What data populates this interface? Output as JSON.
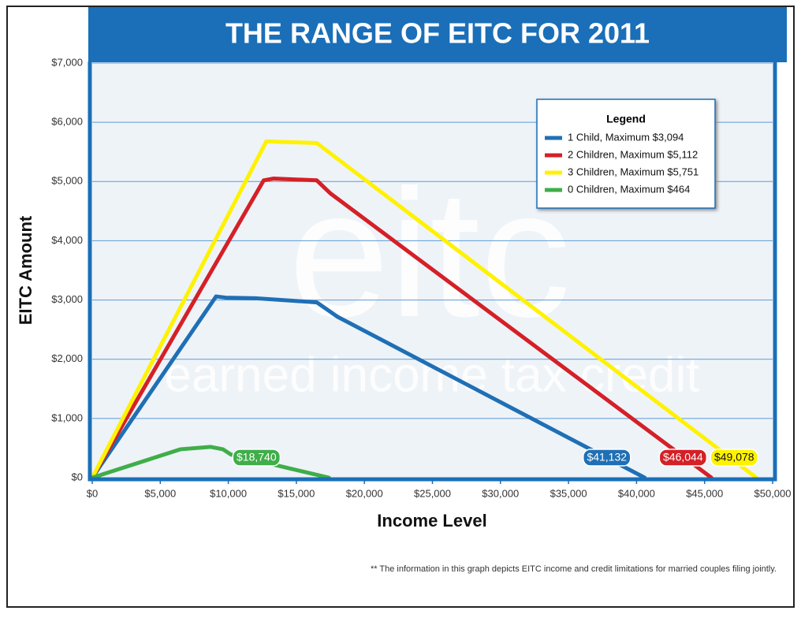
{
  "chart_data": {
    "type": "line",
    "title": "THE RANGE OF EITC FOR 2011",
    "x_label": "Income Level",
    "y_label": "EITC Amount",
    "watermark": "eitc",
    "watermark_subtitle": "earned income tax credit",
    "legend_title": "Legend",
    "legend_position": "upper right",
    "footnote": "** The information in this graph depicts EITC income and credit limitations for married couples filing jointly.",
    "grid": true,
    "xlim": [
      0,
      50000
    ],
    "ylim": [
      0,
      7000
    ],
    "xticks": [
      {
        "value": 0,
        "label": "$0"
      },
      {
        "value": 5000,
        "label": "$5,000"
      },
      {
        "value": 10000,
        "label": "$10,000"
      },
      {
        "value": 15000,
        "label": "$15,000"
      },
      {
        "value": 20000,
        "label": "$20,000"
      },
      {
        "value": 25000,
        "label": "$25,000"
      },
      {
        "value": 30000,
        "label": "$30,000"
      },
      {
        "value": 35000,
        "label": "$35,000"
      },
      {
        "value": 40000,
        "label": "$40,000"
      },
      {
        "value": 45000,
        "label": "$45,000"
      },
      {
        "value": 50000,
        "label": "$50,000"
      }
    ],
    "yticks": [
      {
        "value": 0,
        "label": "$0"
      },
      {
        "value": 1000,
        "label": "$1,000"
      },
      {
        "value": 2000,
        "label": "$2,000"
      },
      {
        "value": 3000,
        "label": "$3,000"
      },
      {
        "value": 4000,
        "label": "$4,000"
      },
      {
        "value": 5000,
        "label": "$5,000"
      },
      {
        "value": 6000,
        "label": "$6,000"
      },
      {
        "value": 7000,
        "label": "$7,000"
      }
    ],
    "series": [
      {
        "name": "1 Child, Maximum $3,094",
        "color": "#1f6fb5",
        "end_label": "$41,132",
        "x": [
          0,
          9100,
          9800,
          12000,
          16500,
          18000,
          40600
        ],
        "values": [
          0,
          3060,
          3040,
          3030,
          2960,
          2720,
          0
        ]
      },
      {
        "name": "2 Children, Maximum $5,112",
        "color": "#d42027",
        "end_label": "$46,044",
        "x": [
          0,
          12600,
          13300,
          16500,
          17500,
          45500
        ],
        "values": [
          0,
          5020,
          5050,
          5020,
          4800,
          0
        ]
      },
      {
        "name": "3 Children, Maximum $5,751",
        "color": "#fff200",
        "end_label": "$49,078",
        "x": [
          0,
          12800,
          13800,
          16500,
          48800
        ],
        "values": [
          0,
          5680,
          5670,
          5650,
          0
        ]
      },
      {
        "name": "0 Children, Maximum $464",
        "color": "#3fae49",
        "end_label": "$18,740",
        "x": [
          0,
          6500,
          8700,
          9600,
          10200,
          17400
        ],
        "values": [
          0,
          480,
          520,
          480,
          390,
          0
        ]
      }
    ]
  }
}
